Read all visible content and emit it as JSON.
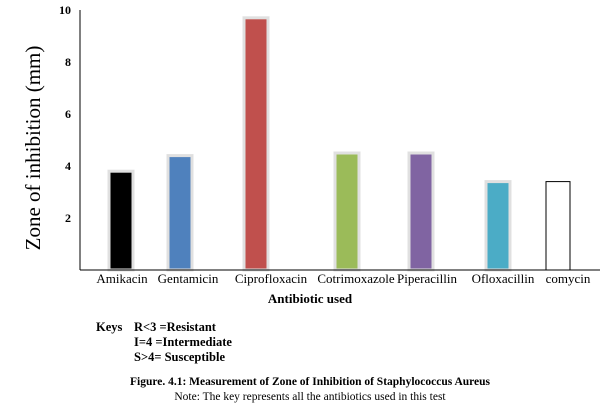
{
  "chart_data": {
    "type": "bar",
    "categories": [
      "Amikacin",
      "Gentamicin",
      "Ciprofloxacin",
      "Cotrimoxazole",
      "Piperacillin",
      "Ofloxacillin",
      "comycin"
    ],
    "values": [
      3.8,
      4.4,
      9.7,
      4.5,
      4.5,
      3.4,
      3.4
    ],
    "colors": [
      "#000000",
      "#4f81bd",
      "#c0504d",
      "#9bbb59",
      "#8064a2",
      "#4bacc6",
      "#ffffff"
    ],
    "title": "",
    "xlabel": "Antibiotic used",
    "ylabel": "Zone of inhibition (mm)",
    "ylim": [
      0,
      10
    ],
    "yticks": [
      "2",
      "4",
      "6",
      "8",
      "10"
    ],
    "ytick_values": [
      2,
      4,
      6,
      8,
      10
    ],
    "grid": false,
    "legend": "none"
  },
  "keys": {
    "label": "Keys",
    "lines": [
      "R<3 =Resistant",
      "I=4 =Intermediate",
      "S>4= Susceptible"
    ]
  },
  "figure": {
    "caption": "Figure. 4.1: Measurement of Zone of Inhibition of Staphylococcus Aureus",
    "note": "Note: The key represents all the antibiotics used in this test"
  }
}
